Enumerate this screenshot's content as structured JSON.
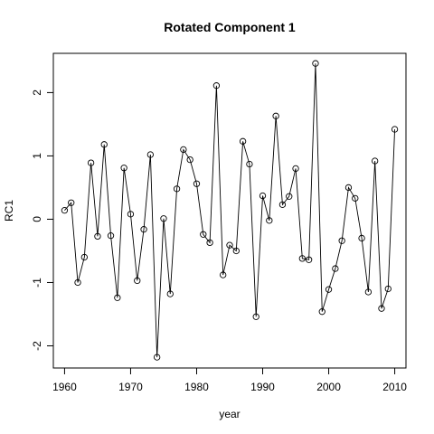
{
  "chart_data": {
    "type": "line",
    "title": "Rotated Component 1",
    "xlabel": "year",
    "ylabel": "RC1",
    "xlim": [
      1958.3,
      2011.7
    ],
    "ylim": [
      -2.35,
      2.62
    ],
    "xticks": [
      1960,
      1970,
      1980,
      1990,
      2000,
      2010
    ],
    "yticks": [
      -2,
      -1,
      0,
      1,
      2
    ],
    "grid": false,
    "series": [
      {
        "x": [
          1960,
          1961,
          1962,
          1963,
          1964,
          1965,
          1966,
          1967,
          1968,
          1969,
          1970,
          1971,
          1972,
          1973,
          1974,
          1975,
          1976,
          1977,
          1978,
          1979,
          1980,
          1981,
          1982,
          1983,
          1984,
          1985,
          1986,
          1987,
          1988,
          1989,
          1990,
          1991,
          1992,
          1993,
          1994,
          1995,
          1996,
          1997,
          1998,
          1999,
          2000,
          2001,
          2002,
          2003,
          2004,
          2005,
          2006,
          2007,
          2008,
          2009,
          2010
        ],
        "values": [
          0.14,
          0.26,
          -1.0,
          -0.6,
          0.89,
          -0.27,
          1.18,
          -0.26,
          -1.24,
          0.81,
          0.08,
          -0.97,
          -0.16,
          1.02,
          -2.18,
          0.01,
          -1.18,
          0.48,
          1.1,
          0.94,
          0.56,
          -0.24,
          -0.37,
          2.11,
          -0.88,
          -0.41,
          -0.5,
          1.23,
          0.87,
          -1.54,
          0.37,
          -0.02,
          1.63,
          0.23,
          0.36,
          0.8,
          -0.62,
          -0.64,
          2.46,
          -1.46,
          -1.11,
          -0.78,
          -0.34,
          0.5,
          0.33,
          -0.3,
          -1.15,
          0.92,
          -1.41,
          -1.1,
          1.42
        ]
      }
    ]
  }
}
